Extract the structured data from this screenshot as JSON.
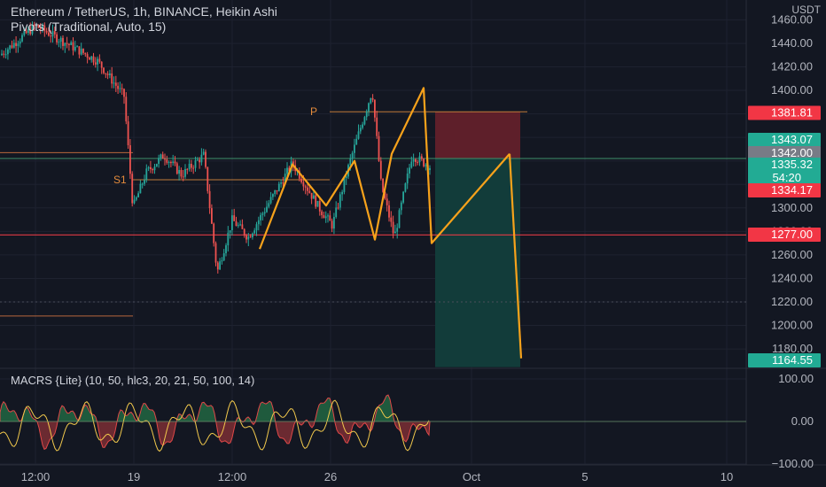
{
  "header": {
    "title": "Ethereum / TetherUS, 1h, BINANCE, Heikin Ashi",
    "pivots": "Pivots (Traditional, Auto, 15)",
    "currency": "USDT",
    "macrs_label": "MACRS {Lite} (10, 50, hlc3, 20, 21, 50, 100, 14)"
  },
  "labels": {
    "pivot_p": "P",
    "pivot_s1": "S1"
  },
  "colors": {
    "background": "#131722",
    "bull": "#26a69a",
    "bear": "#ef5350",
    "zigzag": "#f7a21b",
    "short_stop": "#5e1f2a",
    "short_target": "#123c3a"
  },
  "chart_data": [
    {
      "type": "candlestick",
      "title": "Ethereum / TetherUS, 1h, BINANCE, Heikin Ashi",
      "ylabel": "USDT",
      "ylim": [
        1160,
        1470
      ],
      "y_ticks": [
        "1460.00",
        "1440.00",
        "1420.00",
        "1400.00",
        "1380.00",
        "1360.00",
        "1340.00",
        "1320.00",
        "1300.00",
        "1280.00",
        "1260.00",
        "1240.00",
        "1220.00",
        "1200.00",
        "1180.00"
      ],
      "x_ticks": [
        "12:00",
        "19",
        "12:00",
        "26",
        "Oct",
        "5",
        "10"
      ],
      "grid": true,
      "price_labels": [
        {
          "value": "1381.81",
          "color": "#f23645"
        },
        {
          "value": "1343.07",
          "color": "#22ab94"
        },
        {
          "value": "1342.00",
          "color": "#787b86"
        },
        {
          "value": "1335.32",
          "sub": "54:20",
          "color": "#22ab94"
        },
        {
          "value": "1334.17",
          "color": "#f23645"
        },
        {
          "value": "1277.00",
          "color": "#f23645"
        },
        {
          "value": "1164.55",
          "color": "#22ab94"
        }
      ],
      "horizontal_levels": [
        {
          "name": "P",
          "value": 1381.81
        },
        {
          "name": "S1",
          "value": 1324
        },
        {
          "name": "resistance",
          "value": 1342
        },
        {
          "name": "support",
          "value": 1277
        },
        {
          "name": "lower",
          "value": 1220
        }
      ],
      "zigzag_pattern": [
        1265,
        1337,
        1302,
        1340,
        1273,
        1346,
        1402,
        1270,
        1346,
        1164.55
      ],
      "short_position": {
        "entry": 1342,
        "stop": 1381.81,
        "target": 1164.55
      }
    },
    {
      "type": "line",
      "title": "MACRS {Lite} (10, 50, hlc3, 20, 21, 50, 100, 14)",
      "ylim": [
        -100,
        100
      ],
      "y_ticks": [
        "100.00",
        "0.00",
        "−100.00"
      ],
      "series": [],
      "grid": true
    }
  ]
}
